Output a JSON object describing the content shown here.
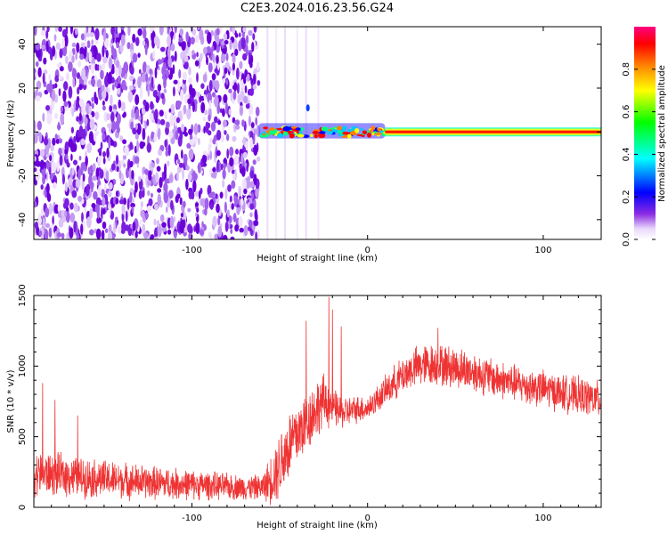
{
  "figure": {
    "title": "C2E3.2024.016.23.56.G24"
  },
  "chart_data": [
    {
      "type": "heatmap",
      "xlabel": "Height of straight line (km)",
      "ylabel": "Frequency (Hz)",
      "xlim": [
        -190,
        133
      ],
      "ylim": [
        -49,
        48
      ],
      "x_ticks": [
        -100,
        0,
        100
      ],
      "y_ticks": [
        -40,
        -20,
        0,
        20,
        40
      ],
      "colorbar": {
        "label": "Normalized spectral amplitude",
        "range": [
          0,
          1
        ],
        "ticks": [
          0.0,
          0.2,
          0.4,
          0.6,
          0.8
        ],
        "colors": [
          "#ffffff",
          "#8a2be2",
          "#0000ff",
          "#00ffff",
          "#00ff00",
          "#ffff00",
          "#ff8000",
          "#ff0000",
          "#ff0080"
        ]
      },
      "regions": [
        {
          "name": "noise",
          "x": [
            -190,
            -62
          ],
          "freq": [
            -49,
            48
          ],
          "amplitude": 0.05
        },
        {
          "name": "transition",
          "x": [
            -62,
            10
          ],
          "freq": [
            -3,
            4
          ],
          "amplitude": 0.6
        },
        {
          "name": "carrier",
          "x": [
            10,
            133
          ],
          "freq": [
            -1,
            1
          ],
          "amplitude": 0.95
        }
      ]
    },
    {
      "type": "line",
      "xlabel": "Height of straight line (km)",
      "ylabel": "SNR (10 * v/v)",
      "xlim": [
        -190,
        133
      ],
      "ylim": [
        0,
        1500
      ],
      "x_ticks": [
        -100,
        0,
        100
      ],
      "y_ticks": [
        0,
        500,
        1000,
        1500
      ],
      "color": "#ef3333",
      "series": [
        {
          "x": [
            -190,
            -175,
            -160,
            -145,
            -130,
            -115,
            -100,
            -85,
            -70,
            -60,
            -55,
            -50,
            -45,
            -40,
            -35,
            -30,
            -25,
            -20,
            -15,
            -10,
            -5,
            0,
            5,
            10,
            15,
            20,
            25,
            30,
            35,
            40,
            50,
            60,
            70,
            80,
            90,
            100,
            110,
            120,
            133
          ],
          "values": [
            240,
            230,
            210,
            195,
            180,
            170,
            160,
            150,
            140,
            140,
            200,
            300,
            430,
            520,
            600,
            690,
            750,
            710,
            670,
            680,
            700,
            700,
            760,
            820,
            880,
            930,
            980,
            1000,
            1010,
            1010,
            990,
            960,
            920,
            890,
            860,
            840,
            810,
            790,
            760
          ],
          "noise": [
            180,
            170,
            160,
            150,
            140,
            130,
            120,
            110,
            100,
            100,
            200,
            280,
            300,
            280,
            250,
            240,
            220,
            160,
            130,
            120,
            110,
            100,
            110,
            120,
            140,
            150,
            160,
            170,
            170,
            170,
            170,
            160,
            160,
            150,
            150,
            150,
            150,
            150,
            150
          ],
          "spikes": [
            [
              -185,
              880
            ],
            [
              -178,
              760
            ],
            [
              -165,
              650
            ],
            [
              -35,
              1320
            ],
            [
              -22,
              1490
            ],
            [
              -20,
              1400
            ],
            [
              -15,
              1280
            ],
            [
              40,
              1270
            ]
          ]
        }
      ]
    }
  ]
}
